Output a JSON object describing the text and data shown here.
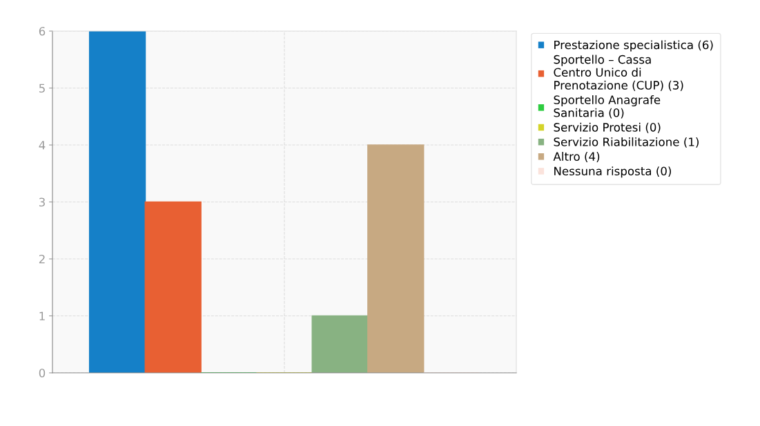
{
  "chart_data": {
    "type": "bar",
    "categories": [
      null
    ],
    "series": [
      {
        "name": "Prestazione specialistica (6)",
        "color": "#1580c8",
        "values": [
          6
        ]
      },
      {
        "name": "Sportello – Cassa\nCentro Unico di\nPrenotazione (CUP) (3)",
        "color": "#e86033",
        "values": [
          3
        ]
      },
      {
        "name": "Sportello Anagrafe\nSanitaria (0)",
        "color": "#2ecc40",
        "values": [
          0
        ]
      },
      {
        "name": "Servizio Protesi (0)",
        "color": "#d4d42a",
        "values": [
          0
        ]
      },
      {
        "name": "Servizio Riabilitazione (1)",
        "color": "#88b282",
        "values": [
          1
        ]
      },
      {
        "name": "Altro (4)",
        "color": "#c7a982",
        "values": [
          4
        ]
      },
      {
        "name": "Nessuna risposta (0)",
        "color": "#fbe3dc",
        "values": [
          0
        ]
      }
    ],
    "ylim": [
      0,
      6
    ],
    "yticks": [
      0,
      1,
      2,
      3,
      4,
      5,
      6
    ],
    "grid": true,
    "legend": "top right"
  }
}
